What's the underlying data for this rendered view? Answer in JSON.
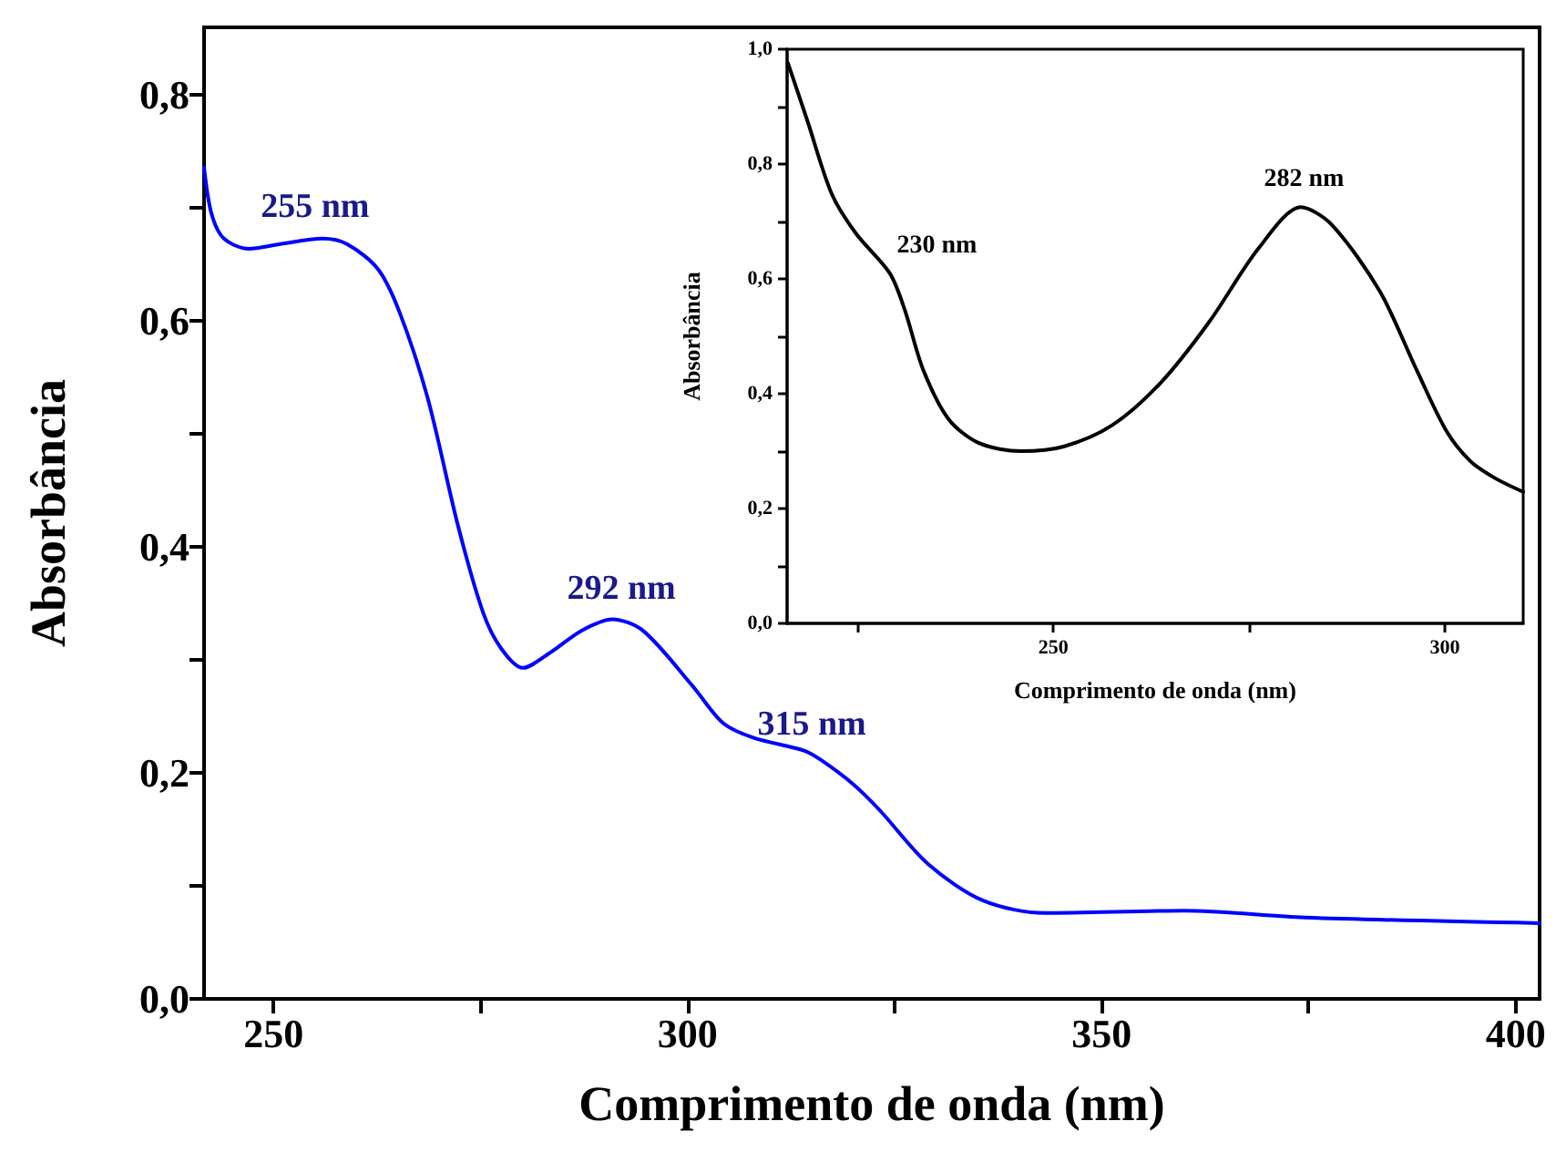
{
  "chart_data": [
    {
      "type": "line",
      "xlabel": "Comprimento de onda (nm)",
      "ylabel": "Absorbância",
      "series": [
        {
          "color": "#0000ff",
          "x": [
            241.6,
            242.5,
            244.0,
            247.0,
            250.7,
            255.9,
            258.9,
            262.6,
            265.2,
            268.6,
            272.3,
            275.3,
            277.5,
            280.1,
            283.5,
            287.2,
            290.9,
            294.6,
            300.6,
            304.3,
            308.0,
            314.0,
            316.0,
            320.0,
            323.2,
            329.1,
            335.7,
            343.1,
            360.0,
            374.6,
            402.9
          ],
          "values": [
            0.736,
            0.695,
            0.673,
            0.664,
            0.668,
            0.673,
            0.668,
            0.646,
            0.608,
            0.532,
            0.418,
            0.342,
            0.31,
            0.293,
            0.307,
            0.326,
            0.336,
            0.326,
            0.277,
            0.244,
            0.231,
            0.22,
            0.212,
            0.19,
            0.167,
            0.119,
            0.087,
            0.076,
            0.078,
            0.072,
            0.067
          ]
        }
      ],
      "annotations": [
        {
          "text": "255 nm",
          "x": 255,
          "y": 0.673
        },
        {
          "text": "292 nm",
          "x": 292,
          "y": 0.335
        },
        {
          "text": "315 nm",
          "x": 315,
          "y": 0.215
        }
      ],
      "xlim": [
        241.6,
        402.9
      ],
      "ylim": [
        0,
        0.86
      ],
      "line_style": "solid",
      "xticks": [
        250,
        {
          "value": 275,
          "label": null
        },
        300,
        {
          "value": 325,
          "label": null
        },
        350,
        {
          "value": 375,
          "label": null
        },
        400
      ],
      "yticks": [
        {
          "value": 0,
          "label": "0,0"
        },
        {
          "value": 0.1,
          "label": null
        },
        {
          "value": 0.2,
          "label": "0,2"
        },
        {
          "value": 0.3,
          "label": null
        },
        {
          "value": 0.4,
          "label": "0,4"
        },
        {
          "value": 0.5,
          "label": null
        },
        {
          "value": 0.6,
          "label": "0,6"
        },
        {
          "value": 0.7,
          "label": null
        },
        {
          "value": 0.8,
          "label": "0,8"
        }
      ],
      "grid": false,
      "marker": "none"
    },
    {
      "type": "line",
      "xlabel": "Comprimento de onda (nm)",
      "ylabel": "Absorbância",
      "series": [
        {
          "color": "#000000",
          "x": [
            216.1,
            218.6,
            221.7,
            224.8,
            229.1,
            231.0,
            233.4,
            236.6,
            240.5,
            245.9,
            251.3,
            257.5,
            263.7,
            269.9,
            276.2,
            281.6,
            285.5,
            291.7,
            296.4,
            300.2,
            303.3,
            306.4,
            310.0
          ],
          "values": [
            0.976,
            0.875,
            0.748,
            0.679,
            0.61,
            0.547,
            0.441,
            0.356,
            0.314,
            0.3,
            0.308,
            0.345,
            0.419,
            0.525,
            0.653,
            0.725,
            0.695,
            0.578,
            0.441,
            0.335,
            0.282,
            0.253,
            0.229
          ]
        }
      ],
      "annotations": [
        {
          "text": "230 nm",
          "x": 230,
          "y": 0.61
        },
        {
          "text": "282 nm",
          "x": 282,
          "y": 0.725
        }
      ],
      "xlim": [
        216,
        310
      ],
      "ylim": [
        0,
        1.0
      ],
      "xticks": [
        {
          "value": 225,
          "label": null
        },
        250,
        {
          "value": 275,
          "label": null
        },
        300
      ],
      "yticks": [
        {
          "value": 0,
          "label": "0,0"
        },
        {
          "value": 0.1,
          "label": null
        },
        {
          "value": 0.2,
          "label": "0,2"
        },
        {
          "value": 0.3,
          "label": null
        },
        {
          "value": 0.4,
          "label": "0,4"
        },
        {
          "value": 0.5,
          "label": null
        },
        {
          "value": 0.6,
          "label": "0,6"
        },
        {
          "value": 0.7,
          "label": null
        },
        {
          "value": 0.8,
          "label": "0,8"
        },
        {
          "value": 0.9,
          "label": null
        },
        {
          "value": 1.0,
          "label": "1,0"
        }
      ],
      "grid": false,
      "marker": "none",
      "line_style": "solid"
    }
  ]
}
